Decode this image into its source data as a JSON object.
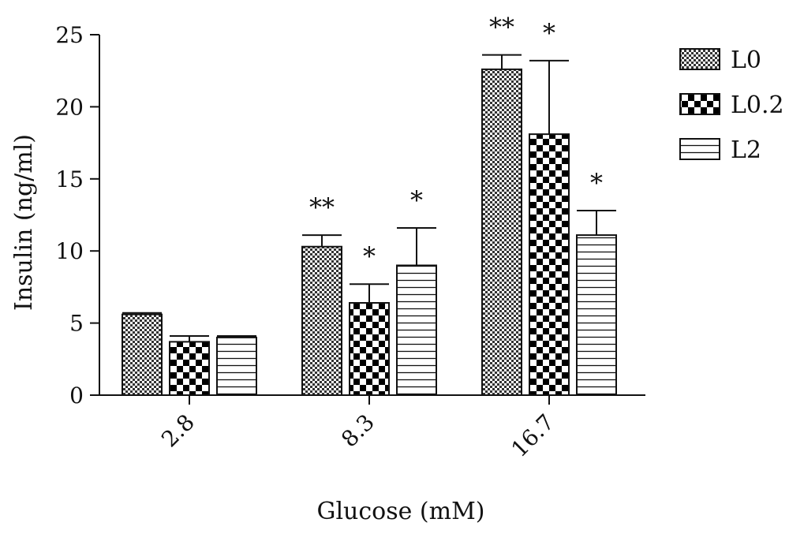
{
  "chart_data": {
    "type": "bar",
    "xlabel": "Glucose (mM)",
    "ylabel": "Insulin (ng/ml)",
    "ylim": [
      0,
      25
    ],
    "yticks": [
      0,
      5,
      10,
      15,
      20,
      25
    ],
    "categories": [
      "2.8",
      "8.3",
      "16.7"
    ],
    "legend_position": "top-right",
    "grid": false,
    "series": [
      {
        "name": "L0",
        "pattern": "fine-checker",
        "values": [
          5.6,
          10.3,
          22.6
        ],
        "errors": [
          0.1,
          0.8,
          1.0
        ],
        "significance": [
          "",
          "**",
          "**"
        ]
      },
      {
        "name": "L0.2",
        "pattern": "coarse-checker",
        "values": [
          3.7,
          6.4,
          18.1
        ],
        "errors": [
          0.4,
          1.3,
          5.1
        ],
        "significance": [
          "",
          "*",
          "*"
        ]
      },
      {
        "name": "L2",
        "pattern": "horizontal-lines",
        "values": [
          4.0,
          9.0,
          11.1
        ],
        "errors": [
          0.1,
          2.6,
          1.7
        ],
        "significance": [
          "",
          "*",
          "*"
        ]
      }
    ]
  }
}
